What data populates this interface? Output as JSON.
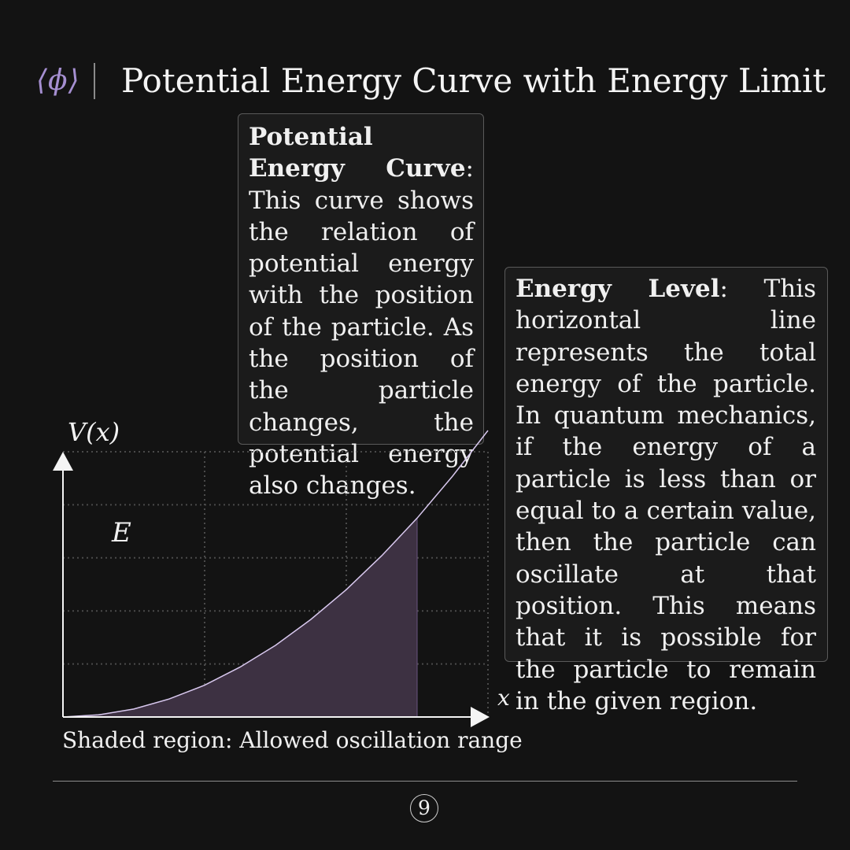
{
  "header": {
    "logo": "⟨ϕ⟩",
    "title": "Potential Energy Curve with Energy Limit"
  },
  "box_curve": {
    "term": "Potential Energy Curve",
    "text": ": This curve shows the relation of potential energy with the position of the particle. As the position of the particle changes, the potential en­ergy also changes."
  },
  "box_energy": {
    "term": "Energy Level",
    "text": ": This hor­izontal line represents the total energy of the par­ticle. In quantum me­chanics, if the energy of a particle is less than or equal to a certain value, then the particle can oscil­late at that position. This means that it is possible for the particle to remain in the given region."
  },
  "chart_data": {
    "type": "area",
    "ylabel": "V(x)",
    "xlabel": "x",
    "energy_label": "E",
    "x": [
      0,
      0.5,
      1,
      1.5,
      2,
      2.5,
      3,
      3.5,
      4,
      4.5,
      5,
      5.5,
      6
    ],
    "y": [
      0,
      0.04,
      0.15,
      0.34,
      0.6,
      0.94,
      1.35,
      1.84,
      2.4,
      3.04,
      3.75,
      4.54,
      5.4
    ],
    "shaded_range": [
      0,
      5.4
    ],
    "xlim": [
      0,
      6
    ],
    "ylim": [
      0,
      5
    ],
    "grid": true,
    "curve_color": "#d8c8ee",
    "fill_color": "#3d3142"
  },
  "caption": "Shaded region: Allowed oscillation range",
  "page_number": "9"
}
